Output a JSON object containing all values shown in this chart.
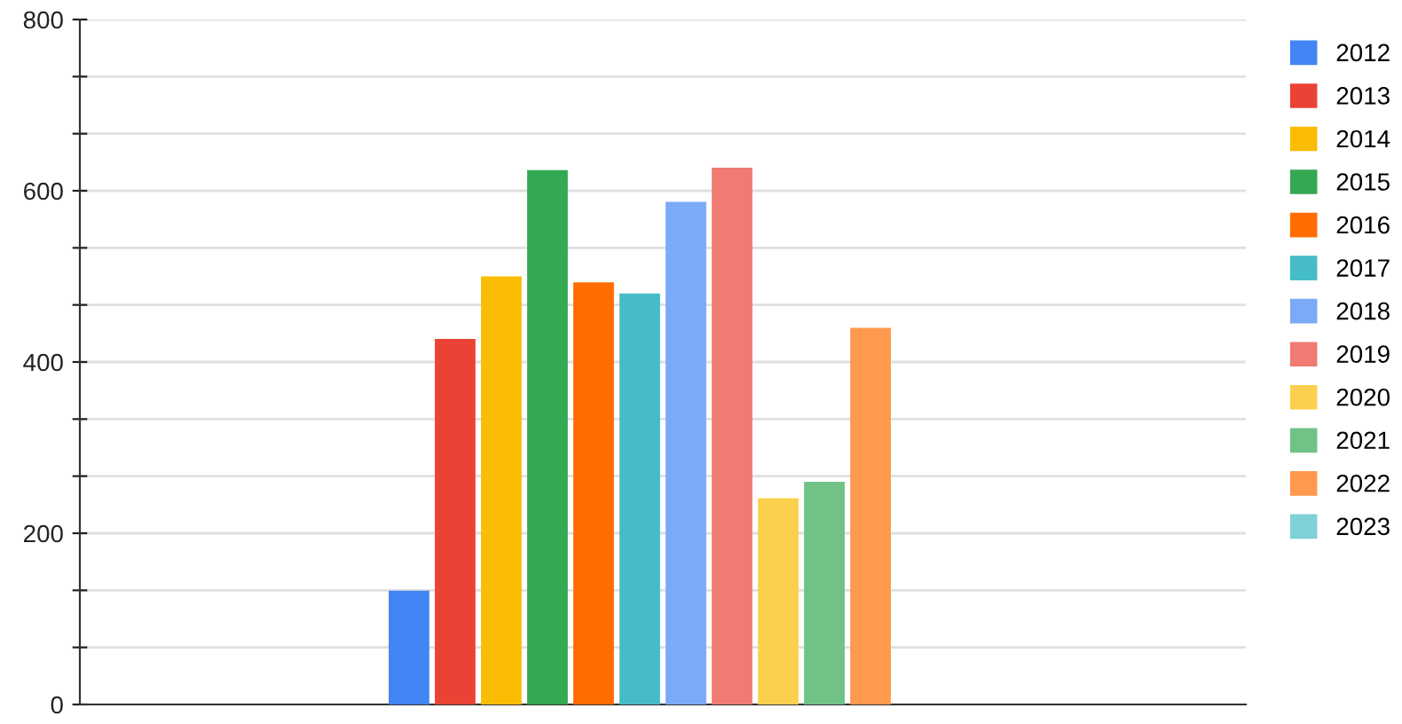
{
  "chart_data": {
    "type": "bar",
    "categories": [
      null
    ],
    "series": [
      {
        "name": "2012",
        "color": "#4285f4",
        "values": [
          133
        ]
      },
      {
        "name": "2013",
        "color": "#ea4335",
        "values": [
          427
        ]
      },
      {
        "name": "2014",
        "color": "#fbbc04",
        "values": [
          500
        ]
      },
      {
        "name": "2015",
        "color": "#34a853",
        "values": [
          624
        ]
      },
      {
        "name": "2016",
        "color": "#ff6d01",
        "values": [
          493
        ]
      },
      {
        "name": "2017",
        "color": "#46bdc6",
        "values": [
          480
        ]
      },
      {
        "name": "2018",
        "color": "#7baaf7",
        "values": [
          587
        ]
      },
      {
        "name": "2019",
        "color": "#f07b72",
        "values": [
          627
        ]
      },
      {
        "name": "2020",
        "color": "#fcd04f",
        "values": [
          241
        ]
      },
      {
        "name": "2021",
        "color": "#71c287",
        "values": [
          260
        ]
      },
      {
        "name": "2022",
        "color": "#ff994d",
        "values": [
          440
        ]
      },
      {
        "name": "2023",
        "color": "#7ed1d7",
        "values": [
          null
        ]
      }
    ],
    "ylim": [
      0,
      800
    ],
    "yticks": [
      0,
      {
        "value": 66.67,
        "label": null
      },
      {
        "value": 133.33,
        "label": null
      },
      200,
      {
        "value": 266.67,
        "label": null
      },
      {
        "value": 333.33,
        "label": null
      },
      400,
      {
        "value": 466.67,
        "label": null
      },
      {
        "value": 533.33,
        "label": null
      },
      600,
      {
        "value": 666.67,
        "label": null
      },
      {
        "value": 733.33,
        "label": null
      },
      800
    ],
    "grid": "y",
    "legend": "right",
    "tick_labels": "y"
  }
}
